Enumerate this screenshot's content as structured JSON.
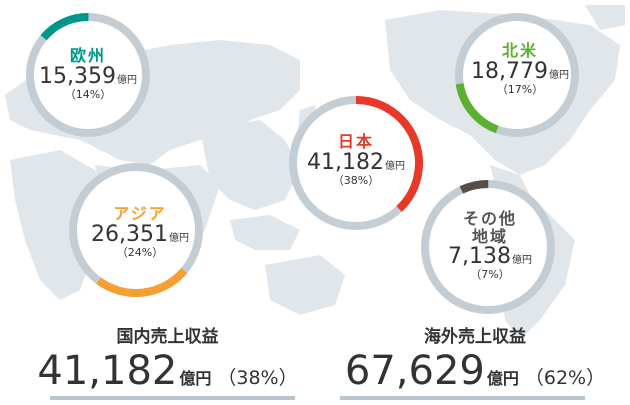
{
  "colors": {
    "map": "#e1e6ea",
    "ring_bg": "#c4cdd3",
    "japan": "#e83828",
    "europe": "#00968a",
    "asia": "#f6a033",
    "north_america": "#5bb030",
    "other": "#594d49"
  },
  "regions": {
    "europe": {
      "name": "欧州",
      "value": "15,359",
      "unit": "億円",
      "pct": "（14%）"
    },
    "north_america": {
      "name": "北米",
      "value": "18,779",
      "unit": "億円",
      "pct": "（17%）"
    },
    "japan": {
      "name": "日本",
      "value": "41,182",
      "unit": "億円",
      "pct": "（38%）"
    },
    "asia": {
      "name": "アジア",
      "value": "26,351",
      "unit": "億円",
      "pct": "（24%）"
    },
    "other": {
      "name_line1": "その他",
      "name_line2": "地域",
      "value": "7,138",
      "unit": "億円",
      "pct": "（7%）"
    }
  },
  "totals": {
    "domestic": {
      "title": "国内売上収益",
      "value": "41,182",
      "unit": "億円",
      "pct": "（38%）"
    },
    "overseas": {
      "title": "海外売上収益",
      "value": "67,629",
      "unit": "億円",
      "pct": "（62%）"
    }
  },
  "chart_data": {
    "type": "pie",
    "unit": "億円",
    "categories": [
      "日本",
      "アジア",
      "北米",
      "欧州",
      "その他地域"
    ],
    "values": [
      41182,
      26351,
      18779,
      15359,
      7138
    ],
    "percentages": [
      38,
      24,
      17,
      14,
      7
    ]
  }
}
